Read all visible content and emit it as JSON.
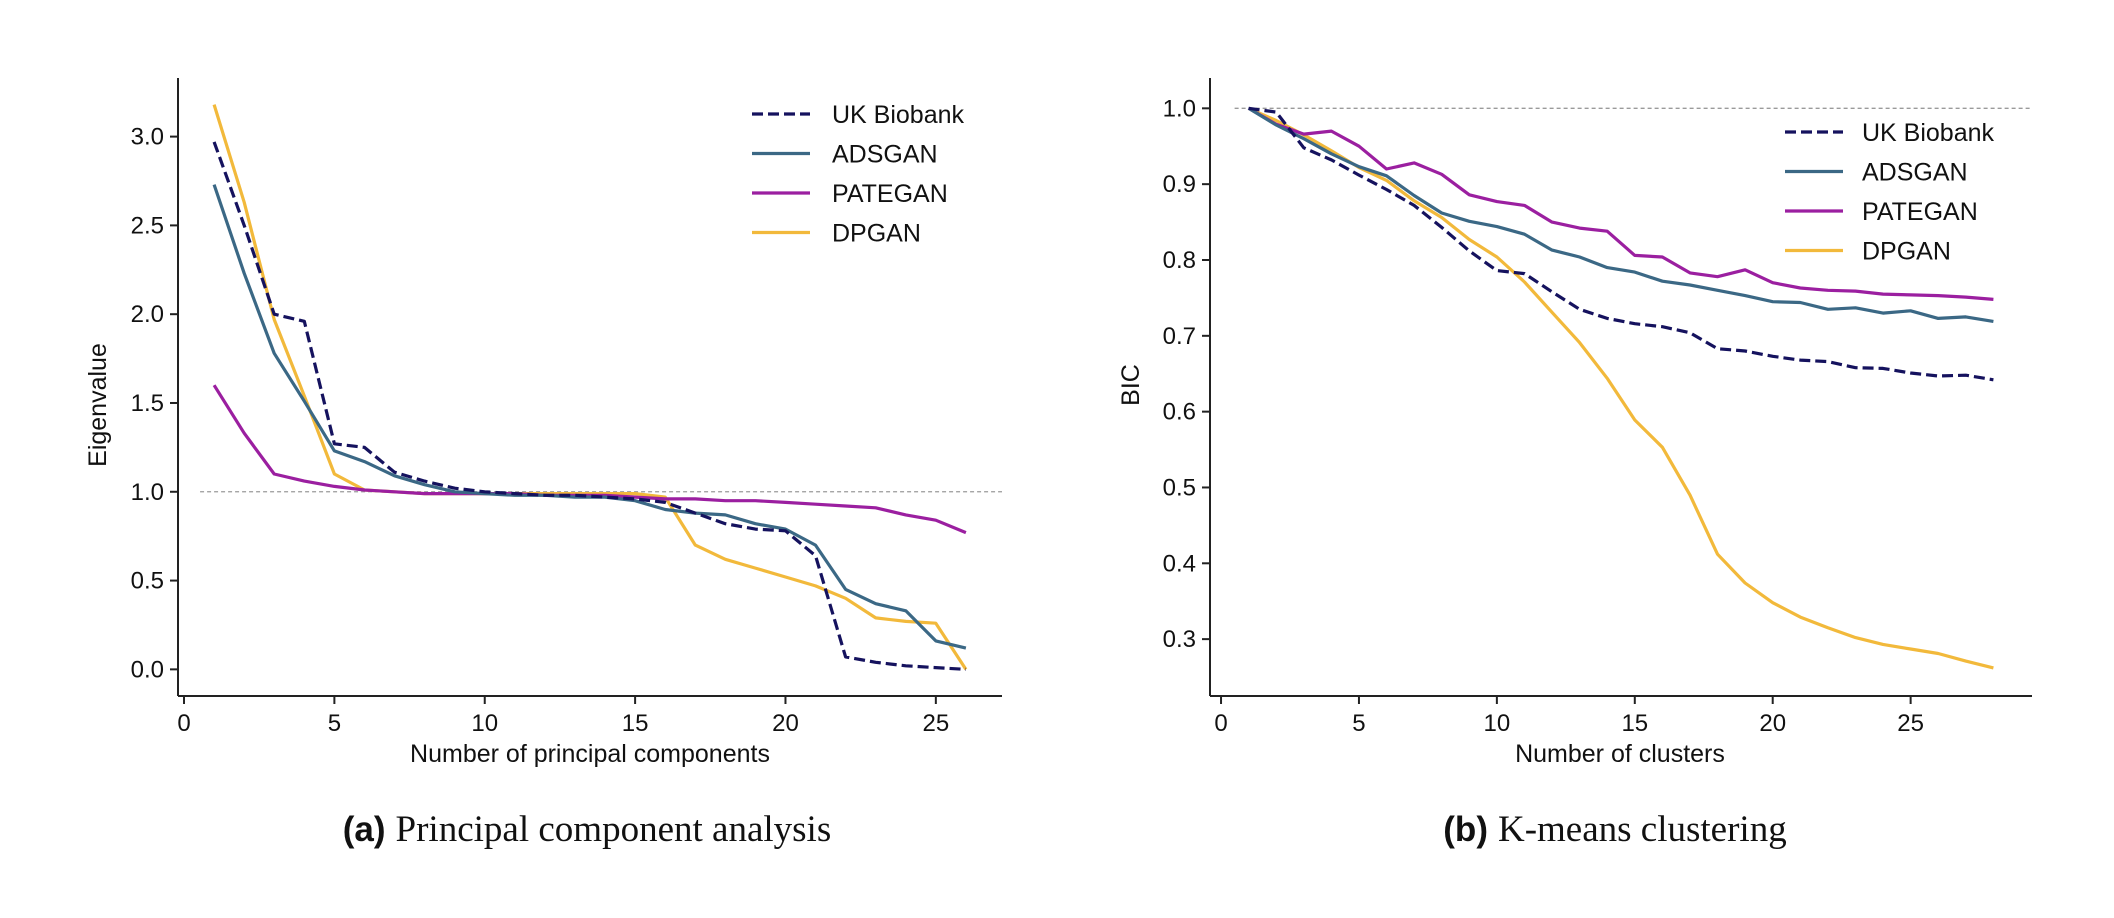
{
  "series_styles": [
    {
      "name": "UK Biobank",
      "color": "#15125e",
      "dash": true
    },
    {
      "name": "ADSGAN",
      "color": "#3b6885",
      "dash": false
    },
    {
      "name": "PATEGAN",
      "color": "#9b1fa0",
      "dash": false
    },
    {
      "name": "DPGAN",
      "color": "#f2b93b",
      "dash": false
    }
  ],
  "reference_line_color": "#9a9a9a",
  "chart_data": [
    {
      "type": "line",
      "panel_tag": "(a)",
      "caption": "Principal component analysis",
      "xlabel": "Number of principal components",
      "ylabel": "Eigenvalue",
      "xlim": [
        -0.2,
        27.2
      ],
      "ylim": [
        -0.15,
        3.33
      ],
      "xticks": [
        0,
        5,
        10,
        15,
        20,
        25
      ],
      "xtick_labels": [
        "0",
        "5",
        "10",
        "15",
        "20",
        "25"
      ],
      "yticks": [
        0.0,
        0.5,
        1.0,
        1.5,
        2.0,
        2.5,
        3.0
      ],
      "ytick_labels": [
        "0.0",
        "0.5",
        "1.0",
        "1.5",
        "2.0",
        "2.5",
        "3.0"
      ],
      "reference_y": 1.0,
      "legend": "top-right",
      "x": [
        1,
        2,
        3,
        4,
        5,
        6,
        7,
        8,
        9,
        10,
        11,
        12,
        13,
        14,
        15,
        16,
        17,
        18,
        19,
        20,
        21,
        22,
        23,
        24,
        25,
        26
      ],
      "series": [
        {
          "name": "UK Biobank",
          "values": [
            2.97,
            2.5,
            2.0,
            1.96,
            1.27,
            1.25,
            1.11,
            1.06,
            1.02,
            1.0,
            0.99,
            0.98,
            0.98,
            0.97,
            0.96,
            0.94,
            0.88,
            0.82,
            0.79,
            0.78,
            0.64,
            0.07,
            0.04,
            0.02,
            0.01,
            0.0
          ]
        },
        {
          "name": "ADSGAN",
          "values": [
            2.73,
            2.23,
            1.78,
            1.51,
            1.23,
            1.17,
            1.09,
            1.04,
            1.0,
            0.99,
            0.98,
            0.98,
            0.97,
            0.97,
            0.95,
            0.9,
            0.88,
            0.87,
            0.82,
            0.79,
            0.7,
            0.45,
            0.37,
            0.33,
            0.16,
            0.12
          ]
        },
        {
          "name": "PATEGAN",
          "values": [
            1.6,
            1.33,
            1.1,
            1.06,
            1.03,
            1.01,
            1.0,
            0.99,
            0.99,
            0.99,
            0.99,
            0.98,
            0.98,
            0.98,
            0.97,
            0.96,
            0.96,
            0.95,
            0.95,
            0.94,
            0.93,
            0.92,
            0.91,
            0.87,
            0.84,
            0.77
          ]
        },
        {
          "name": "DPGAN",
          "values": [
            3.18,
            2.63,
            1.97,
            1.54,
            1.1,
            1.01,
            1.0,
            0.99,
            0.99,
            0.99,
            0.99,
            0.99,
            0.99,
            0.99,
            0.99,
            0.97,
            0.7,
            0.62,
            0.57,
            0.52,
            0.47,
            0.4,
            0.29,
            0.27,
            0.26,
            0.0
          ]
        }
      ]
    },
    {
      "type": "line",
      "panel_tag": "(b)",
      "caption": "K-means clustering",
      "xlabel": "Number of clusters",
      "ylabel": "BIC",
      "xlim": [
        -0.4,
        29.4
      ],
      "ylim": [
        0.225,
        1.04
      ],
      "xticks": [
        0,
        5,
        10,
        15,
        20,
        25
      ],
      "xtick_labels": [
        "0",
        "5",
        "10",
        "15",
        "20",
        "25"
      ],
      "yticks": [
        0.3,
        0.4,
        0.5,
        0.6,
        0.7,
        0.8,
        0.9,
        1.0
      ],
      "ytick_labels": [
        "0.3",
        "0.4",
        "0.5",
        "0.6",
        "0.7",
        "0.8",
        "0.9",
        "1.0"
      ],
      "reference_y": 1.0,
      "legend": "top-right",
      "x": [
        1,
        2,
        3,
        4,
        5,
        6,
        7,
        8,
        9,
        10,
        11,
        12,
        13,
        14,
        15,
        16,
        17,
        18,
        19,
        20,
        21,
        22,
        23,
        24,
        25,
        26,
        27,
        28
      ],
      "series": [
        {
          "name": "UK Biobank",
          "values": [
            1.0,
            0.995,
            0.948,
            0.932,
            0.912,
            0.893,
            0.872,
            0.843,
            0.812,
            0.786,
            0.782,
            0.758,
            0.735,
            0.723,
            0.716,
            0.712,
            0.704,
            0.683,
            0.68,
            0.673,
            0.668,
            0.666,
            0.658,
            0.657,
            0.651,
            0.647,
            0.648,
            0.642
          ]
        },
        {
          "name": "ADSGAN",
          "values": [
            1.0,
            0.978,
            0.96,
            0.94,
            0.923,
            0.911,
            0.885,
            0.862,
            0.851,
            0.844,
            0.834,
            0.813,
            0.804,
            0.79,
            0.784,
            0.772,
            0.767,
            0.76,
            0.753,
            0.745,
            0.744,
            0.735,
            0.737,
            0.73,
            0.733,
            0.723,
            0.725,
            0.719
          ]
        },
        {
          "name": "PATEGAN",
          "values": [
            1.0,
            0.979,
            0.966,
            0.97,
            0.95,
            0.92,
            0.928,
            0.913,
            0.886,
            0.877,
            0.872,
            0.85,
            0.842,
            0.838,
            0.806,
            0.804,
            0.783,
            0.778,
            0.787,
            0.77,
            0.763,
            0.76,
            0.759,
            0.755,
            0.754,
            0.753,
            0.751,
            0.748
          ]
        },
        {
          "name": "DPGAN",
          "values": [
            1.0,
            0.984,
            0.965,
            0.944,
            0.922,
            0.905,
            0.878,
            0.856,
            0.827,
            0.804,
            0.771,
            0.731,
            0.691,
            0.644,
            0.589,
            0.553,
            0.49,
            0.412,
            0.374,
            0.348,
            0.329,
            0.315,
            0.302,
            0.293,
            0.287,
            0.281,
            0.271,
            0.262
          ]
        }
      ]
    }
  ]
}
